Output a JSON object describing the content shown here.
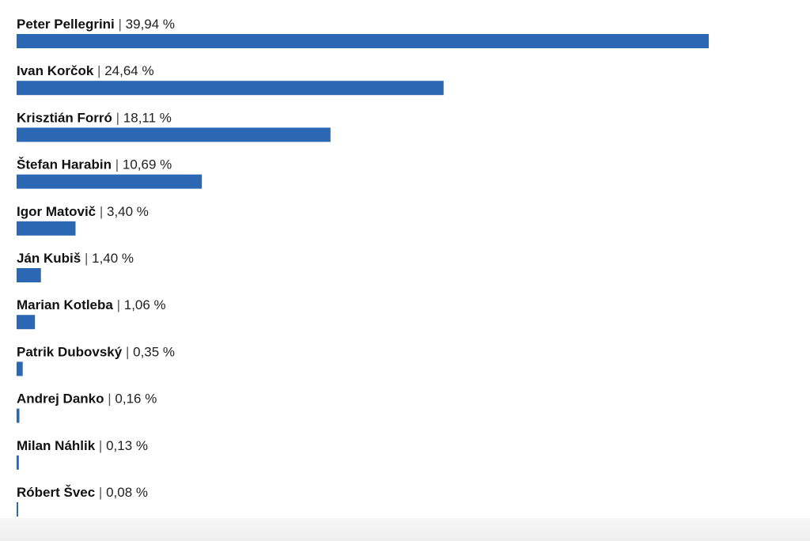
{
  "chart_data": {
    "type": "bar",
    "orientation": "horizontal",
    "categories": [
      "Peter Pellegrini",
      "Ivan Korčok",
      "Krisztián Forró",
      "Štefan Harabin",
      "Igor Matovič",
      "Ján Kubiš",
      "Marian Kotleba",
      "Patrik Dubovský",
      "Andrej Danko",
      "Milan Náhlik",
      "Róbert Švec"
    ],
    "values": [
      39.94,
      24.64,
      18.11,
      10.69,
      3.4,
      1.4,
      1.06,
      0.35,
      0.16,
      0.13,
      0.08
    ],
    "value_labels": [
      "39,94 %",
      "24,64 %",
      "18,11 %",
      "10,69 %",
      "3,40 %",
      "1,40 %",
      "1,06 %",
      "0,35 %",
      "0,16 %",
      "0,13 %",
      "0,08 %"
    ],
    "separator": "|",
    "bar_color": "#2b67b2",
    "grid": false,
    "legend": "none"
  }
}
